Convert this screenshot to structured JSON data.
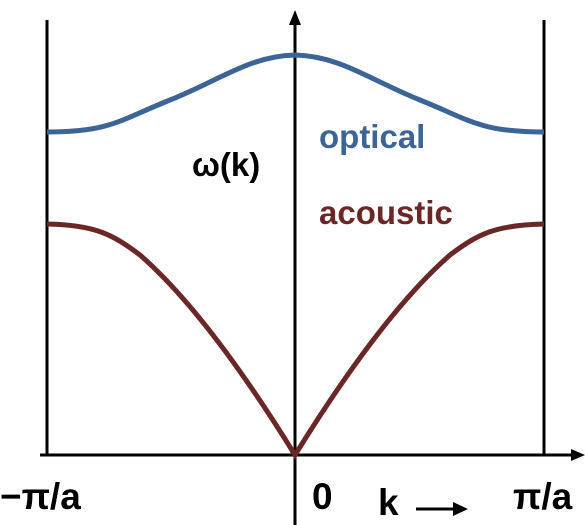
{
  "y_axis_label": "ω(k)",
  "x_axis_label": "k",
  "ticks": {
    "left": "−π/a",
    "center": "0",
    "right": "π/a"
  },
  "branches": {
    "optical": {
      "label": "optical",
      "color": "#3d6496"
    },
    "acoustic": {
      "label": "acoustic",
      "color": "#6b2626"
    }
  },
  "axis_color": "#000000"
}
